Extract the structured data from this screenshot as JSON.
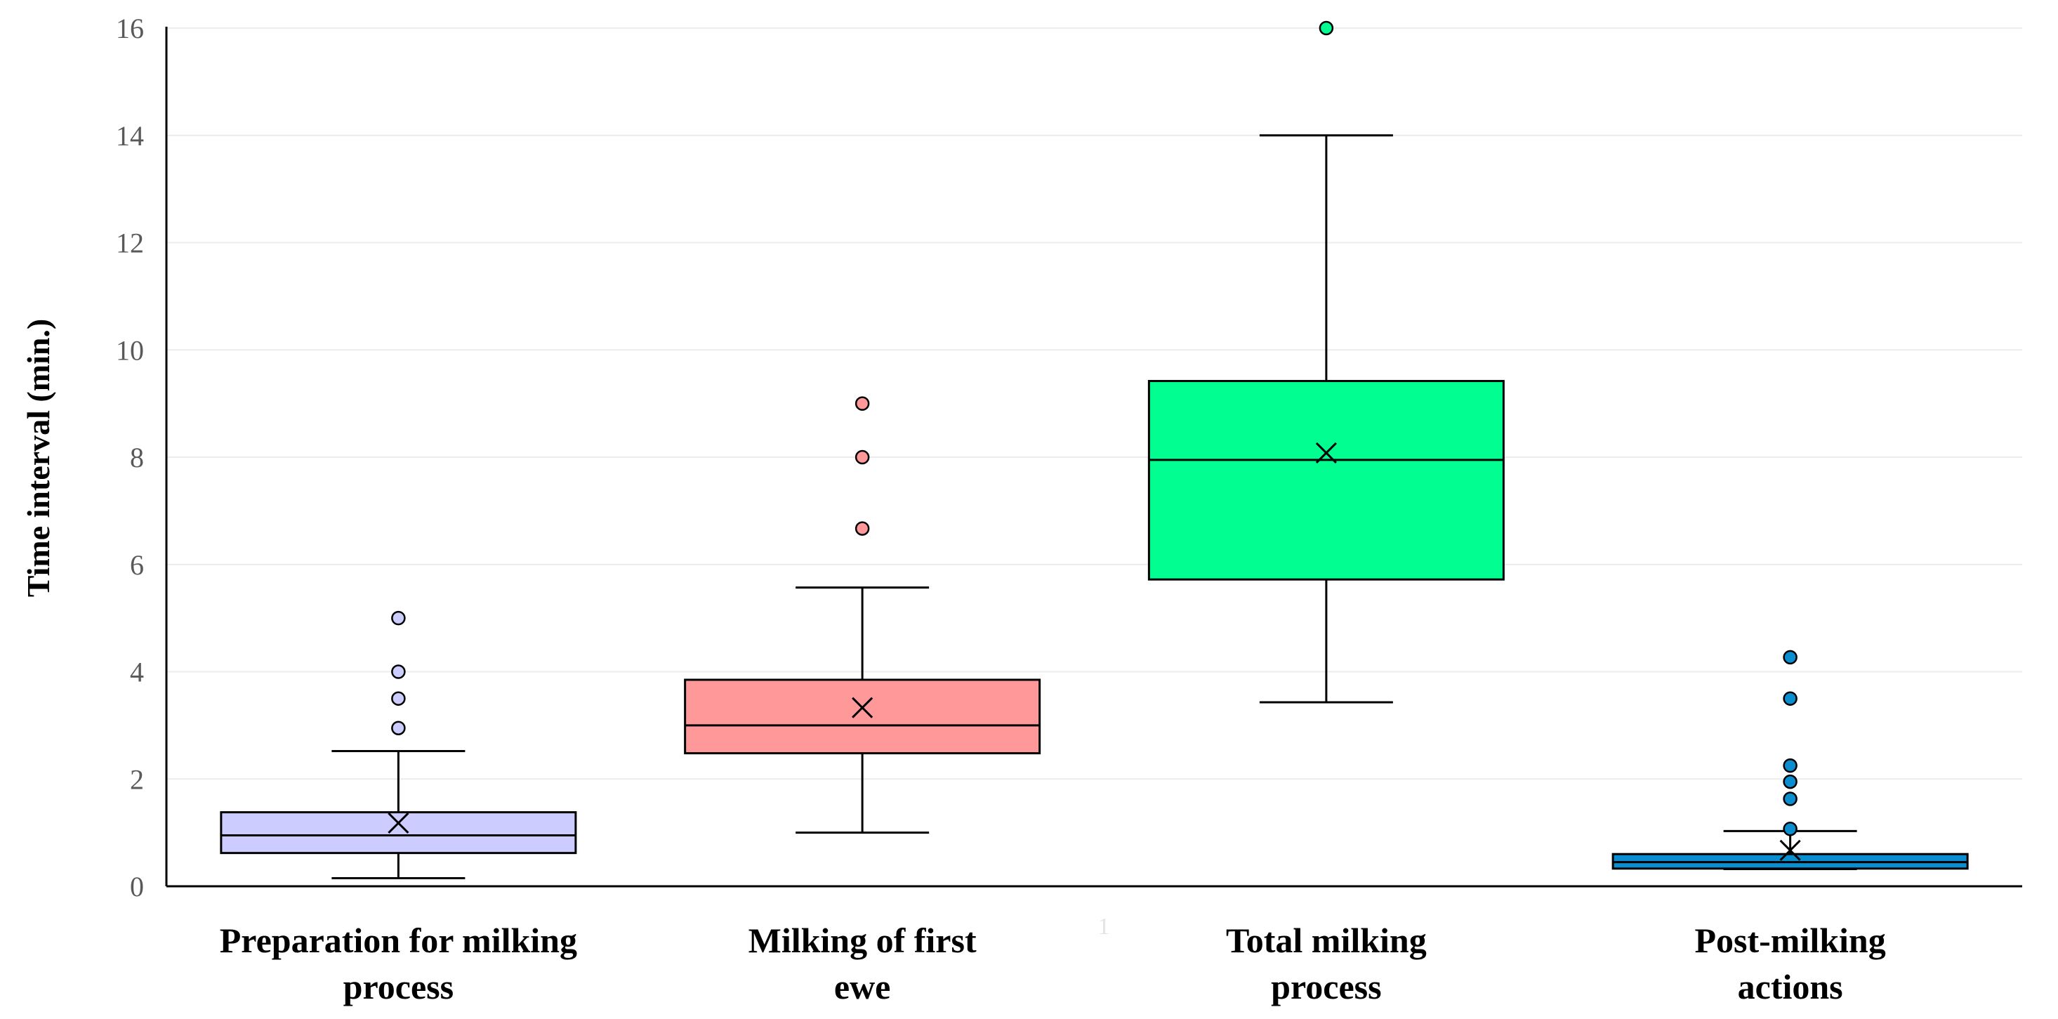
{
  "chart_data": {
    "type": "box",
    "title": "",
    "ylabel": "Time interval (min.)",
    "xlabel": "",
    "x_axis_faint_label": "1",
    "ylim": [
      0,
      16
    ],
    "yticks": [
      0,
      2,
      4,
      6,
      8,
      10,
      12,
      14,
      16
    ],
    "grid": true,
    "categories": [
      {
        "lines": [
          "Preparation for milking",
          "process"
        ]
      },
      {
        "lines": [
          "Milking of first",
          "ewe"
        ]
      },
      {
        "lines": [
          "Total milking",
          "process"
        ]
      },
      {
        "lines": [
          "Post-milking",
          "actions"
        ]
      }
    ],
    "boxes": [
      {
        "name": "Preparation for milking process",
        "color": "#ccccff",
        "whisker_low": 0.15,
        "q1": 0.62,
        "median": 0.95,
        "q3": 1.38,
        "whisker_high": 2.52,
        "mean": 1.18,
        "outliers": [
          2.95,
          3.5,
          4.0,
          5.0
        ]
      },
      {
        "name": "Milking of first ewe",
        "color": "#ff9999",
        "whisker_low": 1.0,
        "q1": 2.48,
        "median": 3.0,
        "q3": 3.85,
        "whisker_high": 5.57,
        "mean": 3.33,
        "outliers": [
          6.67,
          8.0,
          9.0
        ]
      },
      {
        "name": "Total milking process",
        "color": "#00ff90",
        "whisker_low": 3.43,
        "q1": 5.72,
        "median": 7.95,
        "q3": 9.42,
        "whisker_high": 14.0,
        "mean": 8.08,
        "outliers": [
          16.0
        ]
      },
      {
        "name": "Post-milking actions",
        "color": "#0b8ed0",
        "whisker_low": 0.32,
        "q1": 0.33,
        "median": 0.45,
        "q3": 0.6,
        "whisker_high": 1.03,
        "mean": 0.67,
        "outliers": [
          1.07,
          1.63,
          1.95,
          2.25,
          3.5,
          4.27
        ]
      }
    ]
  }
}
